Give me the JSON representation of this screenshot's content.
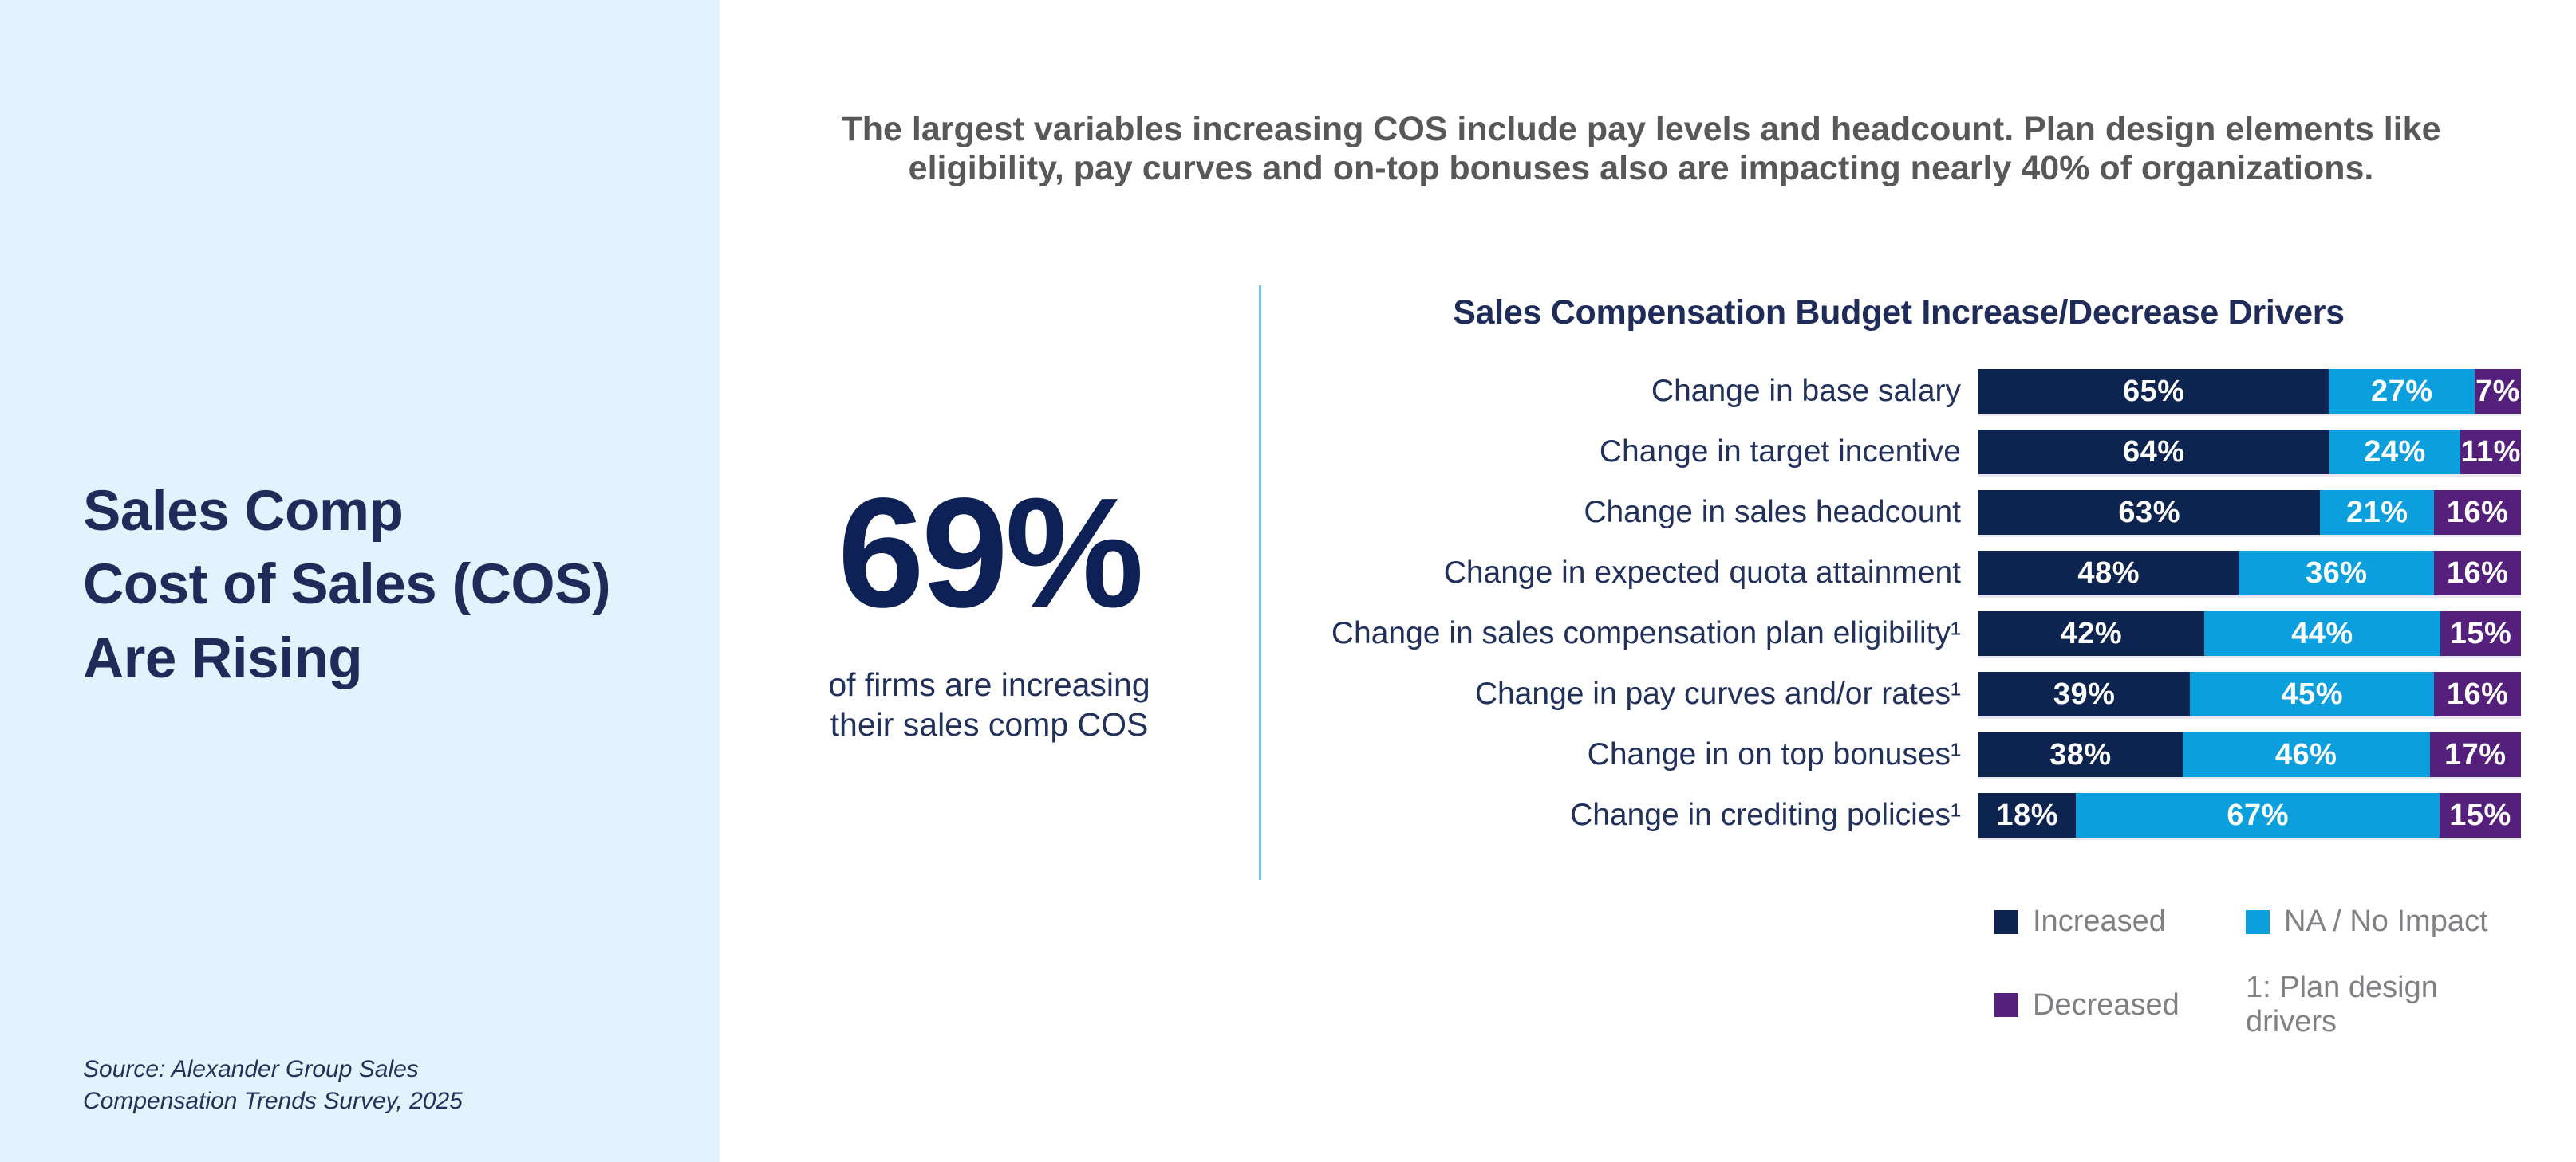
{
  "sidebar": {
    "title": "Sales Comp\nCost of Sales (COS)\nAre Rising",
    "source": "Source: Alexander Group Sales\nCompensation Trends Survey, 2025"
  },
  "header": {
    "text": "The largest variables increasing COS include pay levels and headcount. Plan design elements like eligibility, pay curves and on-top bonuses also are impacting nearly 40% of organizations."
  },
  "stat": {
    "value": "69%",
    "caption": "of firms are increasing\ntheir sales comp COS"
  },
  "chart_data": {
    "type": "bar",
    "orientation": "horizontal",
    "stacked": true,
    "title": "Sales Compensation Budget Increase/Decrease Drivers",
    "categories": [
      "Change in base salary",
      "Change in target incentive",
      "Change in sales headcount",
      "Change in expected quota attainment",
      "Change in sales compensation plan eligibility¹",
      "Change in pay curves and/or rates¹",
      "Change in on top bonuses¹",
      "Change in crediting policies¹"
    ],
    "series": [
      {
        "name": "Increased",
        "color": "#0d2451",
        "values": [
          65,
          64,
          63,
          48,
          42,
          39,
          38,
          18
        ]
      },
      {
        "name": "NA / No Impact",
        "color": "#0c9fde",
        "values": [
          27,
          24,
          21,
          36,
          44,
          45,
          46,
          67
        ]
      },
      {
        "name": "Decreased",
        "color": "#54207b",
        "values": [
          7,
          11,
          16,
          16,
          15,
          16,
          17,
          15
        ]
      }
    ],
    "value_suffix": "%",
    "legend_position": "bottom-right",
    "legend": [
      {
        "label": "Increased",
        "color": "#0d2451"
      },
      {
        "label": "NA / No Impact",
        "color": "#0c9fde"
      },
      {
        "label": "Decreased",
        "color": "#54207b"
      }
    ],
    "footnote": "1: Plan design drivers",
    "xlim": [
      0,
      100
    ],
    "grid": false
  },
  "colors": {
    "sidebar_bg": "#e3f2fc",
    "divider": "#6cc5ec",
    "navy": "#0d2451",
    "light_blue": "#0c9fde",
    "purple": "#54207b"
  }
}
